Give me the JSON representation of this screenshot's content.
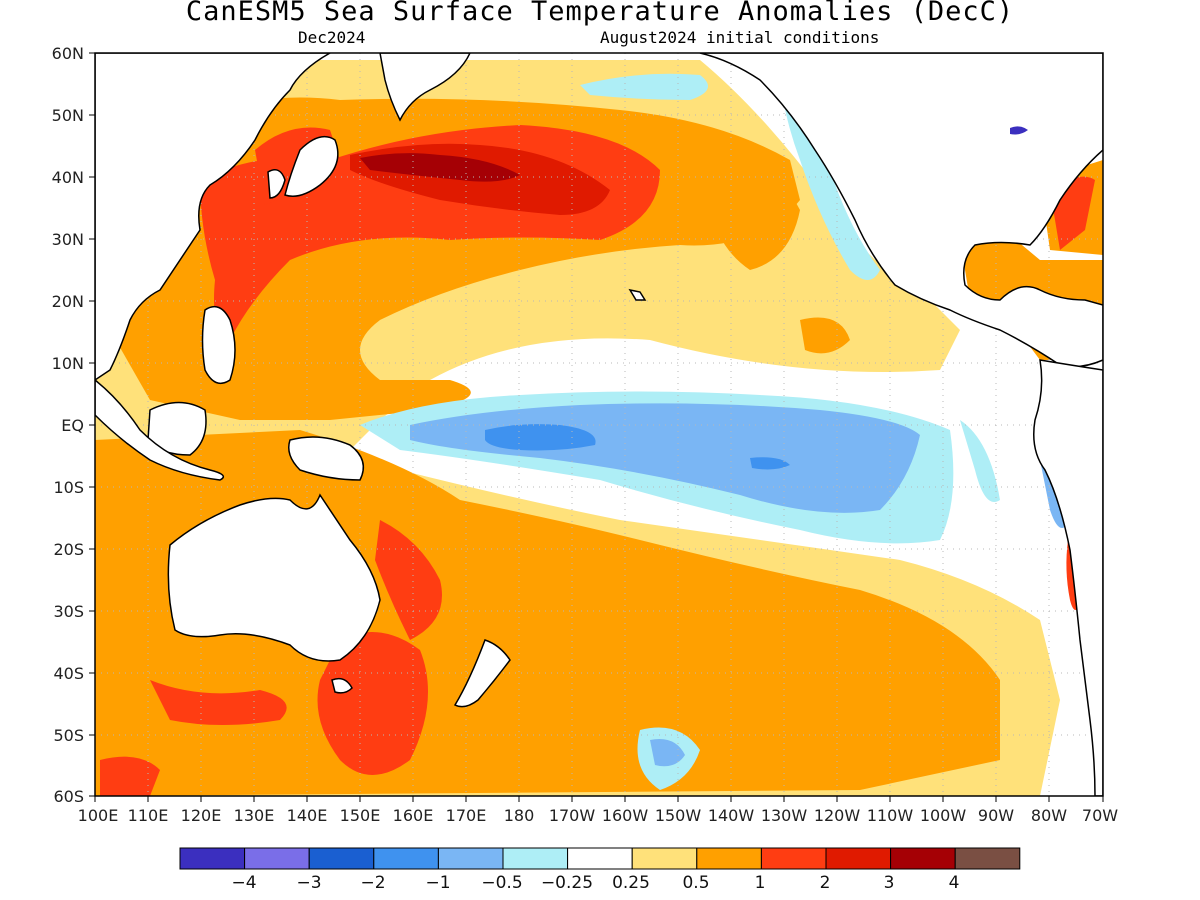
{
  "map": {
    "title": "CanESM5 Sea Surface Temperature Anomalies (DecC)",
    "valid_month": "Dec2024",
    "init_conditions": "August2024 initial conditions",
    "lat_labels": [
      "60N",
      "50N",
      "40N",
      "30N",
      "20N",
      "10N",
      "EQ",
      "10S",
      "20S",
      "30S",
      "40S",
      "50S",
      "60S"
    ],
    "lon_labels": [
      "100E",
      "110E",
      "120E",
      "130E",
      "140E",
      "150E",
      "160E",
      "170E",
      "180",
      "170W",
      "160W",
      "150W",
      "140W",
      "130W",
      "120W",
      "110W",
      "100W",
      "90W",
      "80W",
      "70W"
    ],
    "grid": true,
    "colors": {
      "neg4": "#3b2fbf",
      "neg3": "#7a6ee8",
      "neg2": "#1a5fd1",
      "neg1": "#3f92ef",
      "neg05": "#7ab6f4",
      "neg025": "#aeeef6",
      "zero": "#ffffff",
      "pos025": "#ffe17a",
      "pos05": "#ffa000",
      "pos1": "#ff3d12",
      "pos2": "#e01a00",
      "pos3": "#a50005",
      "pos4": "#7a4f43",
      "land": "#ffffff",
      "coast": "#000000"
    }
  },
  "colorbar": {
    "labels": [
      "−4",
      "−3",
      "−2",
      "−1",
      "−0.5",
      "−0.25",
      "0.25",
      "0.5",
      "1",
      "2",
      "3",
      "4"
    ],
    "colors": [
      "#3b2fbf",
      "#7a6ee8",
      "#1a5fd1",
      "#3f92ef",
      "#7ab6f4",
      "#aeeef6",
      "#ffffff",
      "#ffe17a",
      "#ffa000",
      "#ff3d12",
      "#e01a00",
      "#a50005",
      "#7a4f43"
    ]
  }
}
